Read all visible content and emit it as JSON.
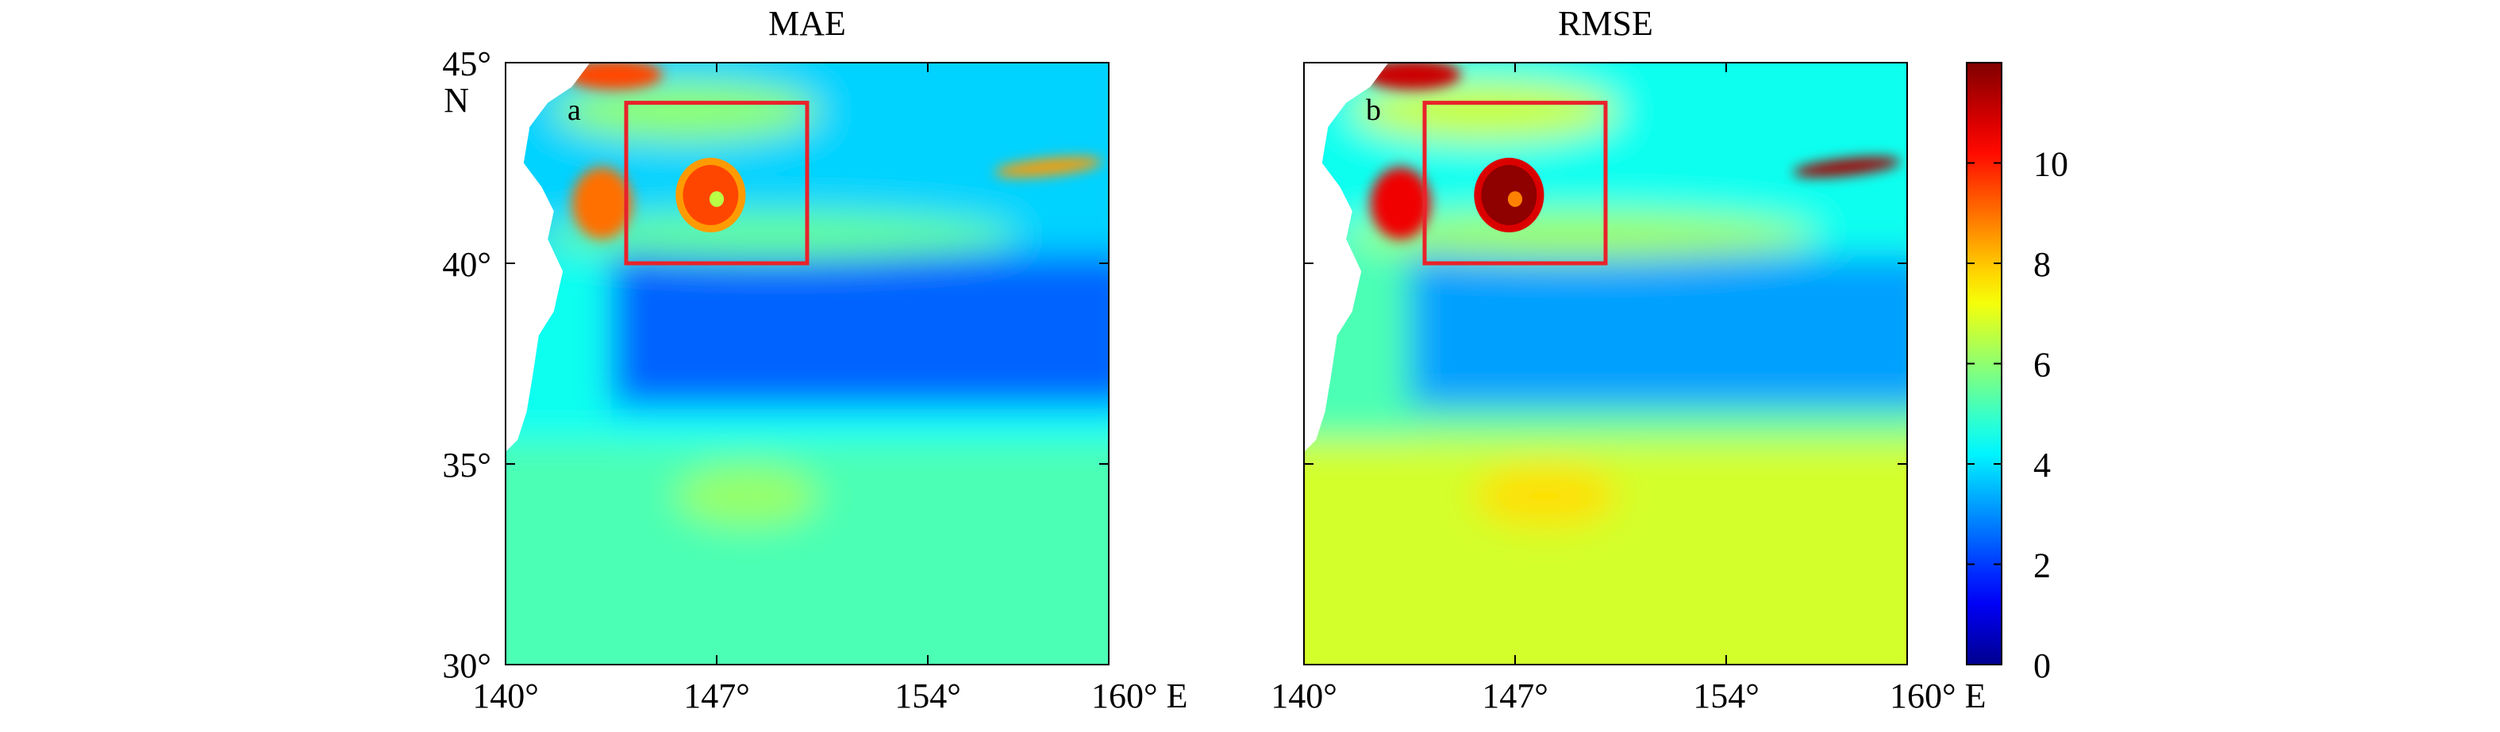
{
  "chart_data": [
    {
      "type": "heatmap",
      "title": "MAE",
      "panel_label": "a",
      "x_ticks": [
        "140°",
        "147°",
        "154°",
        "160° E"
      ],
      "x_tick_values": [
        140,
        147,
        154,
        160
      ],
      "y_ticks": [
        "30°",
        "35°",
        "40°",
        "45°"
      ],
      "y_tick_values": [
        30,
        35,
        40,
        45
      ],
      "y_unit_label": "N",
      "xlim": [
        140,
        160
      ],
      "ylim": [
        30,
        45
      ],
      "highlight_box": {
        "lon": [
          144,
          150
        ],
        "lat": [
          40,
          44
        ]
      },
      "field_features": [
        {
          "feature": "eddy",
          "lon": 146.8,
          "lat": 41.7,
          "value": 9.5
        },
        {
          "feature": "coast-north",
          "lon": 143.2,
          "lat": 41.5,
          "value": 9.0
        },
        {
          "feature": "kuroshio-ext",
          "lon": 158,
          "lat": 42.4,
          "value": 8.5
        },
        {
          "feature": "central-low",
          "lon": 153,
          "lat": 38.5,
          "value": 2.5
        },
        {
          "feature": "south-field",
          "lon": 150,
          "lat": 32.5,
          "value": 5.2
        }
      ]
    },
    {
      "type": "heatmap",
      "title": "RMSE",
      "panel_label": "b",
      "x_ticks": [
        "140°",
        "147°",
        "154°",
        "160° E"
      ],
      "x_tick_values": [
        140,
        147,
        154,
        160
      ],
      "xlim": [
        140,
        160
      ],
      "ylim": [
        30,
        45
      ],
      "highlight_box": {
        "lon": [
          144,
          150
        ],
        "lat": [
          40,
          44
        ]
      },
      "field_features": [
        {
          "feature": "eddy",
          "lon": 146.8,
          "lat": 41.7,
          "value": 11.8
        },
        {
          "feature": "coast-north",
          "lon": 143.2,
          "lat": 41.5,
          "value": 10.5
        },
        {
          "feature": "kuroshio-ext",
          "lon": 158,
          "lat": 42.4,
          "value": 11.5
        },
        {
          "feature": "central-low",
          "lon": 153,
          "lat": 38.5,
          "value": 3.2
        },
        {
          "feature": "south-field",
          "lon": 150,
          "lat": 32.5,
          "value": 6.8
        }
      ]
    }
  ],
  "colorbar": {
    "range": [
      0,
      12
    ],
    "ticks": [
      "0",
      "2",
      "4",
      "6",
      "8",
      "10"
    ],
    "tick_values": [
      0,
      2,
      4,
      6,
      8,
      10
    ],
    "colormap": "jet",
    "colors": [
      "#00008f",
      "#0000ff",
      "#00ffff",
      "#ffff00",
      "#ff0000",
      "#800000"
    ]
  },
  "styles": {
    "box_color": "#e8232a",
    "land_color": "#ffffff"
  }
}
